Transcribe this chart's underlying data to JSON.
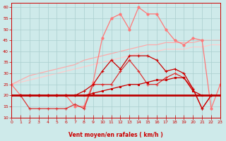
{
  "xlabel": "Vent moyen/en rafales ( km/h )",
  "xlim": [
    0,
    23
  ],
  "ylim": [
    10,
    62
  ],
  "yticks": [
    10,
    15,
    20,
    25,
    30,
    35,
    40,
    45,
    50,
    55,
    60
  ],
  "xticks": [
    0,
    1,
    2,
    3,
    4,
    5,
    6,
    7,
    8,
    9,
    10,
    11,
    12,
    13,
    14,
    15,
    16,
    17,
    18,
    19,
    20,
    21,
    22,
    23
  ],
  "background_color": "#ceeaea",
  "grid_color": "#aacece",
  "lines": [
    {
      "x": [
        0,
        1,
        2,
        3,
        4,
        5,
        6,
        7,
        8,
        9,
        10,
        11,
        12,
        13,
        14,
        15,
        16,
        17,
        18,
        19,
        20,
        21,
        22,
        23
      ],
      "y": [
        20,
        20,
        20,
        20,
        20,
        20,
        20,
        20,
        20,
        20,
        20,
        20,
        20,
        20,
        20,
        20,
        20,
        20,
        20,
        20,
        20,
        20,
        20,
        20
      ],
      "color": "#bb0000",
      "lw": 2.0,
      "marker": null,
      "ms": 0,
      "zorder": 5
    },
    {
      "x": [
        0,
        1,
        2,
        3,
        4,
        5,
        6,
        7,
        8,
        9,
        10,
        11,
        12,
        13,
        14,
        15,
        16,
        17,
        18,
        19,
        20,
        21,
        22,
        23
      ],
      "y": [
        20,
        20,
        20,
        20,
        20,
        20,
        20,
        20,
        20,
        21,
        22,
        23,
        24,
        25,
        25,
        26,
        27,
        27,
        28,
        28,
        22,
        20,
        20,
        20
      ],
      "color": "#cc0000",
      "lw": 0.9,
      "marker": "s",
      "ms": 1.8,
      "zorder": 4
    },
    {
      "x": [
        0,
        1,
        2,
        3,
        4,
        5,
        6,
        7,
        8,
        9,
        10,
        11,
        12,
        13,
        14,
        15,
        16,
        17,
        18,
        19,
        20,
        21,
        22,
        23
      ],
      "y": [
        20,
        20,
        20,
        20,
        20,
        20,
        20,
        20,
        22,
        25,
        31,
        36,
        32,
        38,
        38,
        38,
        36,
        31,
        32,
        30,
        23,
        14,
        20,
        20
      ],
      "color": "#cc0000",
      "lw": 0.9,
      "marker": "+",
      "ms": 3.5,
      "zorder": 4
    },
    {
      "x": [
        0,
        1,
        2,
        3,
        4,
        5,
        6,
        7,
        8,
        9,
        10,
        11,
        12,
        13,
        14,
        15,
        16,
        17,
        18,
        19,
        20,
        21,
        22,
        23
      ],
      "y": [
        20,
        20,
        14,
        14,
        14,
        14,
        14,
        16,
        14,
        25,
        25,
        25,
        31,
        36,
        31,
        25,
        25,
        28,
        30,
        28,
        23,
        14,
        20,
        20
      ],
      "color": "#dd3333",
      "lw": 0.9,
      "marker": "+",
      "ms": 3.5,
      "zorder": 3
    },
    {
      "x": [
        0,
        1,
        2,
        3,
        4,
        5,
        6,
        7,
        8,
        9,
        10,
        11,
        12,
        13,
        14,
        15,
        16,
        17,
        18,
        19,
        20,
        21,
        22,
        23
      ],
      "y": [
        25,
        20,
        20,
        20,
        20,
        20,
        20,
        15,
        15,
        26,
        46,
        55,
        57,
        50,
        60,
        57,
        57,
        50,
        45,
        43,
        46,
        45,
        14,
        25
      ],
      "color": "#ff7777",
      "lw": 0.9,
      "marker": "o",
      "ms": 2.2,
      "zorder": 2
    },
    {
      "x": [
        0,
        1,
        2,
        3,
        4,
        5,
        6,
        7,
        8,
        9,
        10,
        11,
        12,
        13,
        14,
        15,
        16,
        17,
        18,
        19,
        20,
        21,
        22,
        23
      ],
      "y": [
        25,
        27,
        29,
        30,
        31,
        32,
        33,
        34,
        36,
        37,
        38,
        39,
        40,
        41,
        42,
        43,
        43,
        44,
        44,
        44,
        44,
        45,
        45,
        45
      ],
      "color": "#ffaaaa",
      "lw": 0.9,
      "marker": null,
      "ms": 0,
      "zorder": 1
    },
    {
      "x": [
        0,
        1,
        2,
        3,
        4,
        5,
        6,
        7,
        8,
        9,
        10,
        11,
        12,
        13,
        14,
        15,
        16,
        17,
        18,
        19,
        20,
        21,
        22,
        23
      ],
      "y": [
        25,
        26,
        27,
        28,
        29,
        30,
        31,
        32,
        33,
        34,
        35,
        36,
        37,
        38,
        39,
        40,
        40,
        41,
        41,
        41,
        42,
        42,
        43,
        43
      ],
      "color": "#ffcccc",
      "lw": 0.9,
      "marker": null,
      "ms": 0,
      "zorder": 1
    }
  ]
}
